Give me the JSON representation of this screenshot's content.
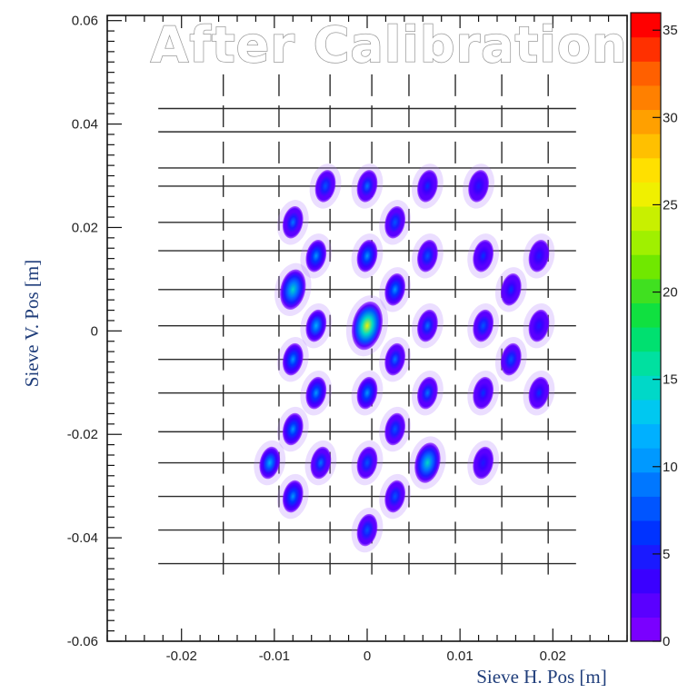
{
  "chart_data": {
    "type": "heatmap",
    "title": "After Calibration",
    "xlabel": "Sieve H. Pos [m]",
    "ylabel": "Sieve V. Pos [m]",
    "xlim": [
      -0.028,
      0.028
    ],
    "ylim": [
      -0.06,
      0.061
    ],
    "x_ticks": [
      -0.02,
      -0.01,
      0,
      0.01,
      0.02
    ],
    "x_tick_labels": [
      "-0.02",
      "-0.01",
      "0",
      "0.01",
      "0.02"
    ],
    "y_ticks": [
      -0.06,
      -0.04,
      -0.02,
      0,
      0.02,
      0.04,
      0.06
    ],
    "y_tick_labels": [
      "-0.06",
      "-0.04",
      "-0.02",
      "0",
      "0.02",
      "0.04",
      "0.06"
    ],
    "colorbar": {
      "min": 0,
      "max": 36,
      "ticks": [
        0,
        5,
        10,
        15,
        20,
        25,
        30,
        35
      ],
      "tick_labels": [
        "0",
        "5",
        "10",
        "15",
        "20",
        "25",
        "30",
        "35"
      ],
      "colors": [
        "#7a00ff",
        "#5a00ff",
        "#3a00ff",
        "#1a1aff",
        "#0033ff",
        "#0055ff",
        "#0077ff",
        "#0099ff",
        "#00b0ff",
        "#00c8f0",
        "#00d8c8",
        "#00e0a0",
        "#00e070",
        "#10e040",
        "#40e020",
        "#70e800",
        "#a0f000",
        "#c8f000",
        "#f0f000",
        "#ffe000",
        "#ffc000",
        "#ffa000",
        "#ff8000",
        "#ff6000",
        "#ff3000",
        "#ff0000"
      ]
    },
    "sieve_grid": {
      "h_lines_y": [
        0.043,
        0.0385,
        0.0315,
        0.028,
        0.021,
        0.0155,
        0.008,
        0.001,
        -0.0055,
        -0.012,
        -0.0195,
        -0.0255,
        -0.032,
        -0.0385,
        -0.045
      ],
      "h_lines_x_range": [
        -0.0225,
        0.0225
      ],
      "cross_x": [
        -0.0155,
        -0.0095,
        -0.004,
        0.0005,
        0.0045,
        0.0095,
        0.0145,
        0.0195
      ],
      "cross_y": [
        0.0475,
        0.0415,
        0.0345,
        0.028,
        0.0215,
        0.0155,
        0.0085,
        0.001,
        -0.0055,
        -0.0125,
        -0.019,
        -0.0255,
        -0.032,
        -0.039,
        -0.045
      ]
    },
    "spots": [
      {
        "x": -0.0045,
        "y": 0.028,
        "peak": 8
      },
      {
        "x": 0.0,
        "y": 0.028,
        "peak": 9
      },
      {
        "x": 0.0065,
        "y": 0.028,
        "peak": 6
      },
      {
        "x": 0.012,
        "y": 0.028,
        "peak": 5
      },
      {
        "x": -0.008,
        "y": 0.021,
        "peak": 9
      },
      {
        "x": 0.003,
        "y": 0.021,
        "peak": 8
      },
      {
        "x": -0.0055,
        "y": 0.0145,
        "peak": 10
      },
      {
        "x": 0.0,
        "y": 0.0145,
        "peak": 11
      },
      {
        "x": 0.0065,
        "y": 0.0145,
        "peak": 8
      },
      {
        "x": 0.0125,
        "y": 0.0145,
        "peak": 6
      },
      {
        "x": 0.0185,
        "y": 0.0145,
        "peak": 5
      },
      {
        "x": -0.008,
        "y": 0.008,
        "peak": 14
      },
      {
        "x": 0.003,
        "y": 0.008,
        "peak": 10
      },
      {
        "x": 0.0155,
        "y": 0.008,
        "peak": 6
      },
      {
        "x": -0.0055,
        "y": 0.001,
        "peak": 12
      },
      {
        "x": 0.0,
        "y": 0.001,
        "peak": 25
      },
      {
        "x": 0.0065,
        "y": 0.001,
        "peak": 9
      },
      {
        "x": 0.0125,
        "y": 0.001,
        "peak": 7
      },
      {
        "x": 0.0185,
        "y": 0.001,
        "peak": 5
      },
      {
        "x": -0.008,
        "y": -0.0055,
        "peak": 11
      },
      {
        "x": 0.003,
        "y": -0.0055,
        "peak": 9
      },
      {
        "x": 0.0155,
        "y": -0.0055,
        "peak": 7
      },
      {
        "x": -0.0055,
        "y": -0.012,
        "peak": 11
      },
      {
        "x": 0.0,
        "y": -0.012,
        "peak": 11
      },
      {
        "x": 0.0065,
        "y": -0.012,
        "peak": 9
      },
      {
        "x": 0.0125,
        "y": -0.012,
        "peak": 6
      },
      {
        "x": 0.0185,
        "y": -0.012,
        "peak": 6
      },
      {
        "x": -0.008,
        "y": -0.019,
        "peak": 10
      },
      {
        "x": 0.003,
        "y": -0.019,
        "peak": 8
      },
      {
        "x": -0.0105,
        "y": -0.0255,
        "peak": 12
      },
      {
        "x": -0.005,
        "y": -0.0255,
        "peak": 9
      },
      {
        "x": 0.0,
        "y": -0.0255,
        "peak": 8
      },
      {
        "x": 0.0065,
        "y": -0.0255,
        "peak": 15
      },
      {
        "x": 0.0125,
        "y": -0.0255,
        "peak": 5
      },
      {
        "x": -0.008,
        "y": -0.032,
        "peak": 10
      },
      {
        "x": 0.003,
        "y": -0.032,
        "peak": 7
      },
      {
        "x": 0.0,
        "y": -0.0385,
        "peak": 8
      }
    ]
  }
}
